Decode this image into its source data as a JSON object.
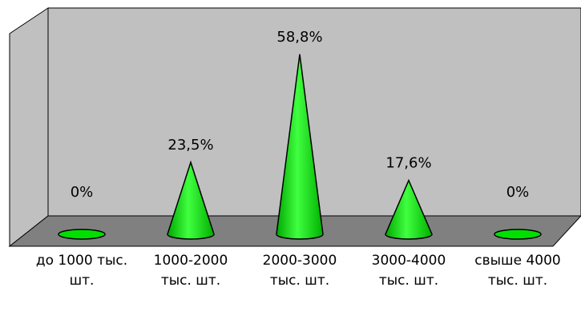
{
  "chart_data": {
    "type": "cone",
    "categories": [
      "до 1000 тыс. шт.",
      "1000-2000 тыс. шт.",
      "2000-3000 тыс. шт.",
      "3000-4000 тыс. шт.",
      "свыше 4000 тыс. шт."
    ],
    "values": [
      0,
      23.5,
      58.8,
      17.6,
      0
    ],
    "value_labels": [
      "0%",
      "23,5%",
      "58,8%",
      "17,6%",
      "0%"
    ],
    "color": "#00e000"
  }
}
